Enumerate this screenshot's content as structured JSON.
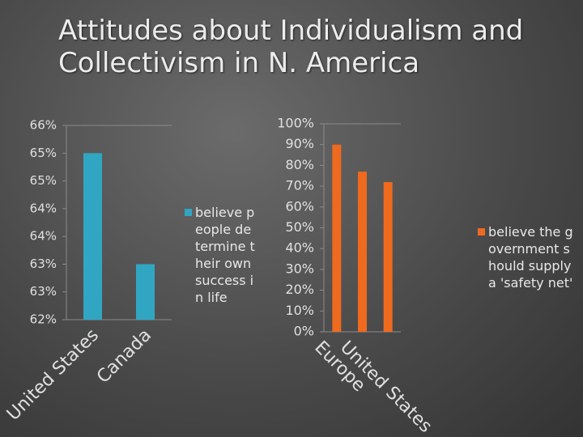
{
  "title": "Attitudes about Individualism and Collectivism in N. America",
  "chart_data": [
    {
      "type": "bar",
      "categories": [
        "United States",
        "Canada"
      ],
      "series": [
        {
          "name": "believe people determine their own success in life",
          "color": "#31a6c3",
          "values": [
            65,
            63
          ]
        }
      ],
      "ylim": [
        62,
        65.5
      ],
      "yticks": [
        {
          "value": 62,
          "label": "62%"
        },
        {
          "value": 62.5,
          "label": "63%"
        },
        {
          "value": 63,
          "label": "63%"
        },
        {
          "value": 63.5,
          "label": "64%"
        },
        {
          "value": 64,
          "label": "64%"
        },
        {
          "value": 64.5,
          "label": "65%"
        },
        {
          "value": 65,
          "label": "65%"
        },
        {
          "value": 65.5,
          "label": "66%"
        }
      ],
      "grid": false,
      "legend": "right"
    },
    {
      "type": "bar",
      "categories": [
        "Europe",
        "United States",
        null
      ],
      "series": [
        {
          "name": "believe the government should supply a 'safety net'",
          "color": "#ee6a1f",
          "values": [
            90,
            77,
            72
          ]
        }
      ],
      "ylim": [
        0,
        100
      ],
      "yticks": [
        {
          "value": 0,
          "label": "0%"
        },
        {
          "value": 10,
          "label": "10%"
        },
        {
          "value": 20,
          "label": "20%"
        },
        {
          "value": 30,
          "label": "30%"
        },
        {
          "value": 40,
          "label": "40%"
        },
        {
          "value": 50,
          "label": "50%"
        },
        {
          "value": 60,
          "label": "60%"
        },
        {
          "value": 70,
          "label": "70%"
        },
        {
          "value": 80,
          "label": "80%"
        },
        {
          "value": 90,
          "label": "90%"
        },
        {
          "value": 100,
          "label": "100%"
        }
      ],
      "grid": false,
      "legend": "right"
    }
  ]
}
